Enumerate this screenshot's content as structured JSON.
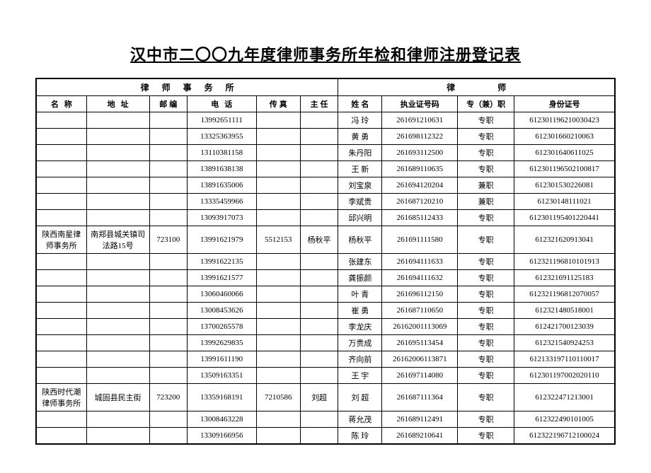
{
  "title": "汉中市二〇〇九年度律师事务所年检和律师注册登记表",
  "group_headers": {
    "firm": "律师事务所",
    "lawyer": "律师"
  },
  "columns": {
    "name": "名称",
    "address": "地址",
    "zip": "邮编",
    "phone": "电话",
    "fax": "传真",
    "director": "主任",
    "lawyer_name": "姓名",
    "license": "执业证号码",
    "type": "专（兼）职",
    "id_number": "身份证号"
  },
  "rows": [
    {
      "firm": "",
      "addr": "",
      "zip": "",
      "phone": "13992651111",
      "fax": "",
      "dir": "",
      "lname": "冯 玲",
      "lic": "261691210631",
      "type": "专职",
      "id": "612301196210030423"
    },
    {
      "firm": "",
      "addr": "",
      "zip": "",
      "phone": "13325363955",
      "fax": "",
      "dir": "",
      "lname": "黄 勇",
      "lic": "261698112322",
      "type": "专职",
      "id": "612301660210063"
    },
    {
      "firm": "",
      "addr": "",
      "zip": "",
      "phone": "13110381158",
      "fax": "",
      "dir": "",
      "lname": "朱丹阳",
      "lic": "261693112500",
      "type": "专职",
      "id": "612301640611025"
    },
    {
      "firm": "",
      "addr": "",
      "zip": "",
      "phone": "13891638138",
      "fax": "",
      "dir": "",
      "lname": "王 新",
      "lic": "261689110635",
      "type": "专职",
      "id": "612301196502100817"
    },
    {
      "firm": "",
      "addr": "",
      "zip": "",
      "phone": "13891635006",
      "fax": "",
      "dir": "",
      "lname": "刘宝泉",
      "lic": "261694120204",
      "type": "兼职",
      "id": "612301530226081"
    },
    {
      "firm": "",
      "addr": "",
      "zip": "",
      "phone": "13335459966",
      "fax": "",
      "dir": "",
      "lname": "李斌贵",
      "lic": "261687120210",
      "type": "兼职",
      "id": "61230148111021"
    },
    {
      "firm": "",
      "addr": "",
      "zip": "",
      "phone": "13093917073",
      "fax": "",
      "dir": "",
      "lname": "邱兴明",
      "lic": "261685112433",
      "type": "专职",
      "id": "612301195401220441"
    },
    {
      "firm": "陕西南星律师事务所",
      "addr": "南郑县城关镇司法路15号",
      "zip": "723100",
      "phone": "13991621979",
      "fax": "5512153",
      "dir": "杨秋平",
      "lname": "杨秋平",
      "lic": "261691111580",
      "type": "专职",
      "id": "612321620913041",
      "tall": true
    },
    {
      "firm": "",
      "addr": "",
      "zip": "",
      "phone": "13991622135",
      "fax": "",
      "dir": "",
      "lname": "张建东",
      "lic": "261694111633",
      "type": "专职",
      "id": "612321196810101913"
    },
    {
      "firm": "",
      "addr": "",
      "zip": "",
      "phone": "13991621577",
      "fax": "",
      "dir": "",
      "lname": "龚振颜",
      "lic": "261694111632",
      "type": "专职",
      "id": "612321691125183"
    },
    {
      "firm": "",
      "addr": "",
      "zip": "",
      "phone": "13060460066",
      "fax": "",
      "dir": "",
      "lname": "叶 青",
      "lic": "261696112150",
      "type": "专职",
      "id": "612321196812070057"
    },
    {
      "firm": "",
      "addr": "",
      "zip": "",
      "phone": "13008453626",
      "fax": "",
      "dir": "",
      "lname": "崔 勇",
      "lic": "261687110650",
      "type": "专职",
      "id": "612321480518001"
    },
    {
      "firm": "",
      "addr": "",
      "zip": "",
      "phone": "13700265578",
      "fax": "",
      "dir": "",
      "lname": "李龙庆",
      "lic": "26162001113069",
      "type": "专职",
      "id": "612421700123039"
    },
    {
      "firm": "",
      "addr": "",
      "zip": "",
      "phone": "13992629835",
      "fax": "",
      "dir": "",
      "lname": "万贵成",
      "lic": "261695113454",
      "type": "专职",
      "id": "612321540924253"
    },
    {
      "firm": "",
      "addr": "",
      "zip": "",
      "phone": "13991611190",
      "fax": "",
      "dir": "",
      "lname": "齐向前",
      "lic": "26162006113871",
      "type": "专职",
      "id": "612133197110110017"
    },
    {
      "firm": "",
      "addr": "",
      "zip": "",
      "phone": "13509163351",
      "fax": "",
      "dir": "",
      "lname": "王 宇",
      "lic": "261697114080",
      "type": "专职",
      "id": "612301197002020110"
    },
    {
      "firm": "陕西时代潮律师事务所",
      "addr": "城固县民主街",
      "zip": "723200",
      "phone": "13359168191",
      "fax": "7210586",
      "dir": "刘超",
      "lname": "刘 超",
      "lic": "261687111364",
      "type": "专职",
      "id": "612322471213001",
      "tall": true
    },
    {
      "firm": "",
      "addr": "",
      "zip": "",
      "phone": "13008463228",
      "fax": "",
      "dir": "",
      "lname": "蒋允茂",
      "lic": "261689112491",
      "type": "专职",
      "id": "612322490101005"
    },
    {
      "firm": "",
      "addr": "",
      "zip": "",
      "phone": "13309166956",
      "fax": "",
      "dir": "",
      "lname": "陈 玲",
      "lic": "261689210641",
      "type": "专职",
      "id": "612322196712100024"
    }
  ]
}
